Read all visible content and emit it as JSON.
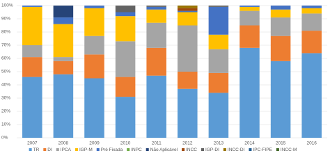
{
  "chart_data": {
    "type": "stacked_bar",
    "categories": [
      "2007",
      "2008",
      "2009",
      "2010",
      "2011",
      "2012",
      "2013",
      "2014",
      "2015",
      "2016"
    ],
    "series": [
      {
        "name": "TR",
        "color": "#5b9bd5",
        "values": [
          46,
          48,
          45,
          31,
          47,
          37,
          34,
          68,
          58,
          64
        ]
      },
      {
        "name": "DI",
        "color": "#ed7d31",
        "values": [
          15,
          10,
          18,
          15,
          21,
          13,
          15,
          17,
          19,
          17
        ]
      },
      {
        "name": "IPCA",
        "color": "#a5a5a5",
        "values": [
          9,
          3,
          14,
          27,
          19,
          35,
          18,
          11,
          14,
          13
        ]
      },
      {
        "name": "IGP-M",
        "color": "#ffc000",
        "values": [
          29,
          25,
          21,
          19,
          10,
          10,
          11,
          3,
          6,
          4
        ]
      },
      {
        "name": "Pré Fixada",
        "color": "#4472c4",
        "values": [
          1,
          5,
          2,
          3,
          2,
          1,
          21,
          1,
          3,
          2
        ]
      },
      {
        "name": "INPC",
        "color": "#70ad47",
        "values": [
          0,
          0,
          0,
          0,
          0,
          0,
          0,
          0,
          0,
          0
        ]
      },
      {
        "name": "Não Aplicável",
        "color": "#264478",
        "values": [
          0,
          9,
          0,
          0,
          0,
          0,
          0,
          0,
          0,
          0
        ]
      },
      {
        "name": "INCC",
        "color": "#9e480e",
        "values": [
          0,
          0,
          0,
          0,
          0,
          2,
          0,
          0,
          0,
          0
        ]
      },
      {
        "name": "IGP-DI",
        "color": "#636363",
        "values": [
          0,
          0,
          0,
          5,
          1,
          0,
          1,
          0,
          0,
          0
        ]
      },
      {
        "name": "INCC-DI",
        "color": "#997300",
        "values": [
          0,
          0,
          0,
          0,
          0,
          2,
          0,
          0,
          0,
          0
        ]
      },
      {
        "name": "IPC-FIPE",
        "color": "#255e91",
        "values": [
          0,
          0,
          0,
          0,
          0,
          0,
          0,
          0,
          0,
          0
        ]
      },
      {
        "name": "INCC-M",
        "color": "#43682b",
        "values": [
          0,
          0,
          0,
          0,
          0,
          0,
          0,
          0,
          0,
          0
        ]
      }
    ],
    "ylim": [
      0,
      100
    ],
    "yticks": [
      {
        "value": 0,
        "label": "0%"
      },
      {
        "value": 10,
        "label": "10%"
      },
      {
        "value": 20,
        "label": "20%"
      },
      {
        "value": 30,
        "label": "30%"
      },
      {
        "value": 40,
        "label": "40%"
      },
      {
        "value": 50,
        "label": "50%"
      },
      {
        "value": 60,
        "label": "60%"
      },
      {
        "value": 70,
        "label": "70%"
      },
      {
        "value": 80,
        "label": "80%"
      },
      {
        "value": 90,
        "label": "90%"
      },
      {
        "value": 100,
        "label": "100%"
      }
    ],
    "grid": true,
    "legend": "bottom"
  }
}
